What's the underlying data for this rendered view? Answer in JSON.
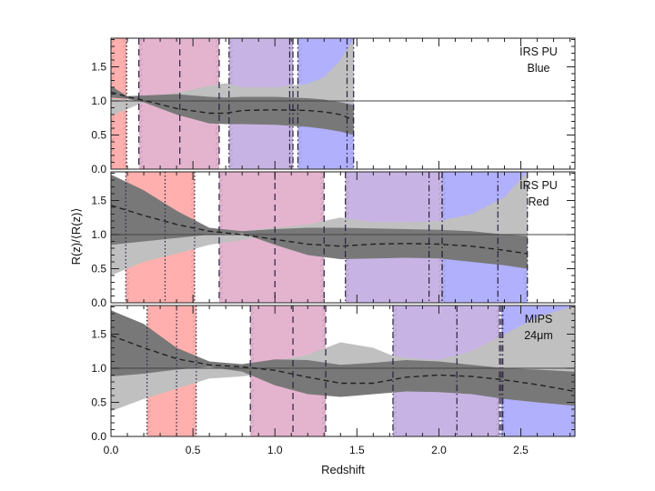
{
  "chart_data": {
    "type": "area",
    "xlabel": "Redshift",
    "ylabel": "R(z)/⟨R(z)⟩",
    "xlim": [
      0.0,
      2.83
    ],
    "xticks": [
      0.0,
      0.5,
      1.0,
      1.5,
      2.0,
      2.5
    ],
    "xtick_labels": [
      "0.0",
      "0.5",
      "1.0",
      "1.5",
      "2.0",
      "2.5"
    ],
    "ylim": [
      0.0,
      1.92
    ],
    "yticks": [
      0.0,
      0.5,
      1.0,
      1.5
    ],
    "ytick_labels": [
      "0.0",
      "0.5",
      "1.0",
      "1.5"
    ],
    "reference_line": 1.0,
    "colors": {
      "red_band": "#FFB0AE",
      "pink_band": "#E4B4CE",
      "purple_band": "#C8B4E4",
      "blue_band": "#B0B0FC",
      "light_gray_band": "#C0C0C0",
      "dark_gray_band": "#787878",
      "median_line": "#222222"
    },
    "panels": [
      {
        "label_line1": "IRS PU",
        "label_line2": "Blue",
        "z_max": 1.48,
        "bands": [
          {
            "color": "red",
            "z0": 0.0,
            "z1": 0.095,
            "marker": 0.095,
            "style": "dotted"
          },
          {
            "color": "pink",
            "z0": 0.17,
            "z1": 0.66,
            "marker": 0.42,
            "style": "dashed"
          },
          {
            "color": "purple",
            "z0": 0.72,
            "z1": 1.11,
            "marker": 1.09,
            "style": "dashdot"
          },
          {
            "color": "blue",
            "z0": 1.14,
            "z1": 1.48,
            "marker": 1.44,
            "style": "dashdot"
          }
        ],
        "light_gray": {
          "z": [
            0.0,
            0.1,
            0.2,
            0.4,
            0.6,
            0.7,
            0.8,
            1.0,
            1.2,
            1.3,
            1.4,
            1.48
          ],
          "upper": [
            1.03,
            1.02,
            1.05,
            1.12,
            1.22,
            1.26,
            1.2,
            1.2,
            1.25,
            1.35,
            1.6,
            1.92
          ],
          "lower": [
            0.78,
            0.88,
            0.98,
            1.0,
            1.0,
            1.0,
            1.0,
            1.0,
            1.0,
            1.0,
            0.98,
            0.95
          ]
        },
        "dark_gray": {
          "z": [
            0.0,
            0.1,
            0.2,
            0.4,
            0.6,
            0.7,
            0.8,
            1.0,
            1.2,
            1.3,
            1.4,
            1.48
          ],
          "upper": [
            1.22,
            1.07,
            1.08,
            1.1,
            1.06,
            1.05,
            1.06,
            1.06,
            1.04,
            1.02,
            0.98,
            0.94
          ],
          "lower": [
            1.05,
            1.03,
            0.98,
            0.8,
            0.67,
            0.66,
            0.66,
            0.65,
            0.62,
            0.59,
            0.55,
            0.5
          ]
        },
        "median": {
          "z": [
            0.0,
            0.1,
            0.2,
            0.4,
            0.6,
            0.7,
            0.8,
            1.0,
            1.2,
            1.3,
            1.4,
            1.48
          ],
          "values": [
            1.13,
            1.06,
            1.01,
            0.89,
            0.82,
            0.82,
            0.86,
            0.87,
            0.86,
            0.84,
            0.8,
            0.72
          ]
        }
      },
      {
        "label_line1": "IRS PU",
        "label_line2": "Red",
        "z_max": 2.54,
        "bands": [
          {
            "color": "red",
            "z0": 0.09,
            "z1": 0.51,
            "marker": 0.33,
            "style": "dotted"
          },
          {
            "color": "pink",
            "z0": 0.66,
            "z1": 1.3,
            "marker": 1.0,
            "style": "dashed"
          },
          {
            "color": "purple",
            "z0": 1.43,
            "z1": 2.02,
            "marker": 1.94,
            "style": "dashdot"
          },
          {
            "color": "blue",
            "z0": 2.02,
            "z1": 2.54,
            "marker": 2.36,
            "style": "dashdot"
          }
        ],
        "light_gray": {
          "z": [
            0.0,
            0.2,
            0.4,
            0.6,
            0.8,
            1.0,
            1.2,
            1.4,
            1.6,
            1.8,
            2.0,
            2.2,
            2.4,
            2.54
          ],
          "upper": [
            1.0,
            1.0,
            1.0,
            1.02,
            1.05,
            1.1,
            1.15,
            1.25,
            1.18,
            1.18,
            1.2,
            1.3,
            1.55,
            1.92
          ],
          "lower": [
            0.4,
            0.6,
            0.72,
            0.85,
            0.92,
            1.0,
            1.05,
            1.07,
            1.07,
            1.07,
            1.05,
            1.02,
            0.98,
            0.98
          ]
        },
        "dark_gray": {
          "z": [
            0.0,
            0.2,
            0.4,
            0.6,
            0.8,
            1.0,
            1.2,
            1.4,
            1.6,
            1.8,
            2.0,
            2.2,
            2.4,
            2.54
          ],
          "upper": [
            1.88,
            1.65,
            1.35,
            1.1,
            1.05,
            1.08,
            1.1,
            1.1,
            1.09,
            1.08,
            1.07,
            1.05,
            1.0,
            0.98
          ],
          "lower": [
            0.85,
            0.9,
            0.95,
            1.0,
            1.02,
            0.85,
            0.7,
            0.64,
            0.65,
            0.66,
            0.65,
            0.6,
            0.55,
            0.5
          ]
        },
        "median": {
          "z": [
            0.0,
            0.2,
            0.4,
            0.6,
            0.8,
            1.0,
            1.2,
            1.4,
            1.6,
            1.8,
            2.0,
            2.2,
            2.4,
            2.54
          ],
          "values": [
            1.43,
            1.28,
            1.15,
            1.05,
            1.0,
            0.93,
            0.86,
            0.83,
            0.86,
            0.87,
            0.86,
            0.83,
            0.77,
            0.72
          ]
        }
      },
      {
        "label_line1": "MIPS",
        "label_line2": "24μm",
        "z_max": 2.83,
        "bands": [
          {
            "color": "red",
            "z0": 0.22,
            "z1": 0.52,
            "marker": 0.4,
            "style": "dotted"
          },
          {
            "color": "pink",
            "z0": 0.85,
            "z1": 1.31,
            "marker": 1.11,
            "style": "dashed"
          },
          {
            "color": "purple",
            "z0": 1.72,
            "z1": 2.37,
            "marker": 2.11,
            "style": "dashdot"
          },
          {
            "color": "blue",
            "z0": 2.38,
            "z1": 2.83,
            "marker": 2.39,
            "style": "dashdot"
          }
        ],
        "light_gray": {
          "z": [
            0.0,
            0.2,
            0.4,
            0.6,
            0.8,
            1.0,
            1.2,
            1.4,
            1.6,
            1.7,
            1.8,
            2.0,
            2.2,
            2.4,
            2.6,
            2.83
          ],
          "upper": [
            1.0,
            1.0,
            1.03,
            1.05,
            1.03,
            1.1,
            1.2,
            1.38,
            1.3,
            1.2,
            1.15,
            1.12,
            1.25,
            1.5,
            1.75,
            1.92
          ],
          "lower": [
            0.37,
            0.55,
            0.7,
            0.85,
            0.88,
            0.95,
            1.0,
            1.02,
            1.03,
            1.03,
            1.04,
            1.03,
            1.0,
            0.95,
            0.92,
            0.9
          ]
        },
        "dark_gray": {
          "z": [
            0.0,
            0.2,
            0.4,
            0.6,
            0.8,
            1.0,
            1.2,
            1.4,
            1.6,
            1.8,
            2.0,
            2.2,
            2.4,
            2.6,
            2.83
          ],
          "upper": [
            1.85,
            1.65,
            1.3,
            1.1,
            1.06,
            1.13,
            1.12,
            1.05,
            1.08,
            1.12,
            1.1,
            1.05,
            1.0,
            0.98,
            0.95
          ],
          "lower": [
            0.88,
            0.92,
            0.98,
            1.02,
            0.95,
            0.75,
            0.62,
            0.58,
            0.62,
            0.66,
            0.65,
            0.62,
            0.55,
            0.5,
            0.45
          ]
        },
        "median": {
          "z": [
            0.0,
            0.2,
            0.4,
            0.6,
            0.8,
            1.0,
            1.2,
            1.4,
            1.6,
            1.8,
            2.0,
            2.2,
            2.4,
            2.6,
            2.83
          ],
          "values": [
            1.48,
            1.3,
            1.14,
            1.05,
            1.02,
            0.97,
            0.87,
            0.78,
            0.78,
            0.87,
            0.9,
            0.88,
            0.83,
            0.76,
            0.66
          ]
        }
      }
    ]
  }
}
